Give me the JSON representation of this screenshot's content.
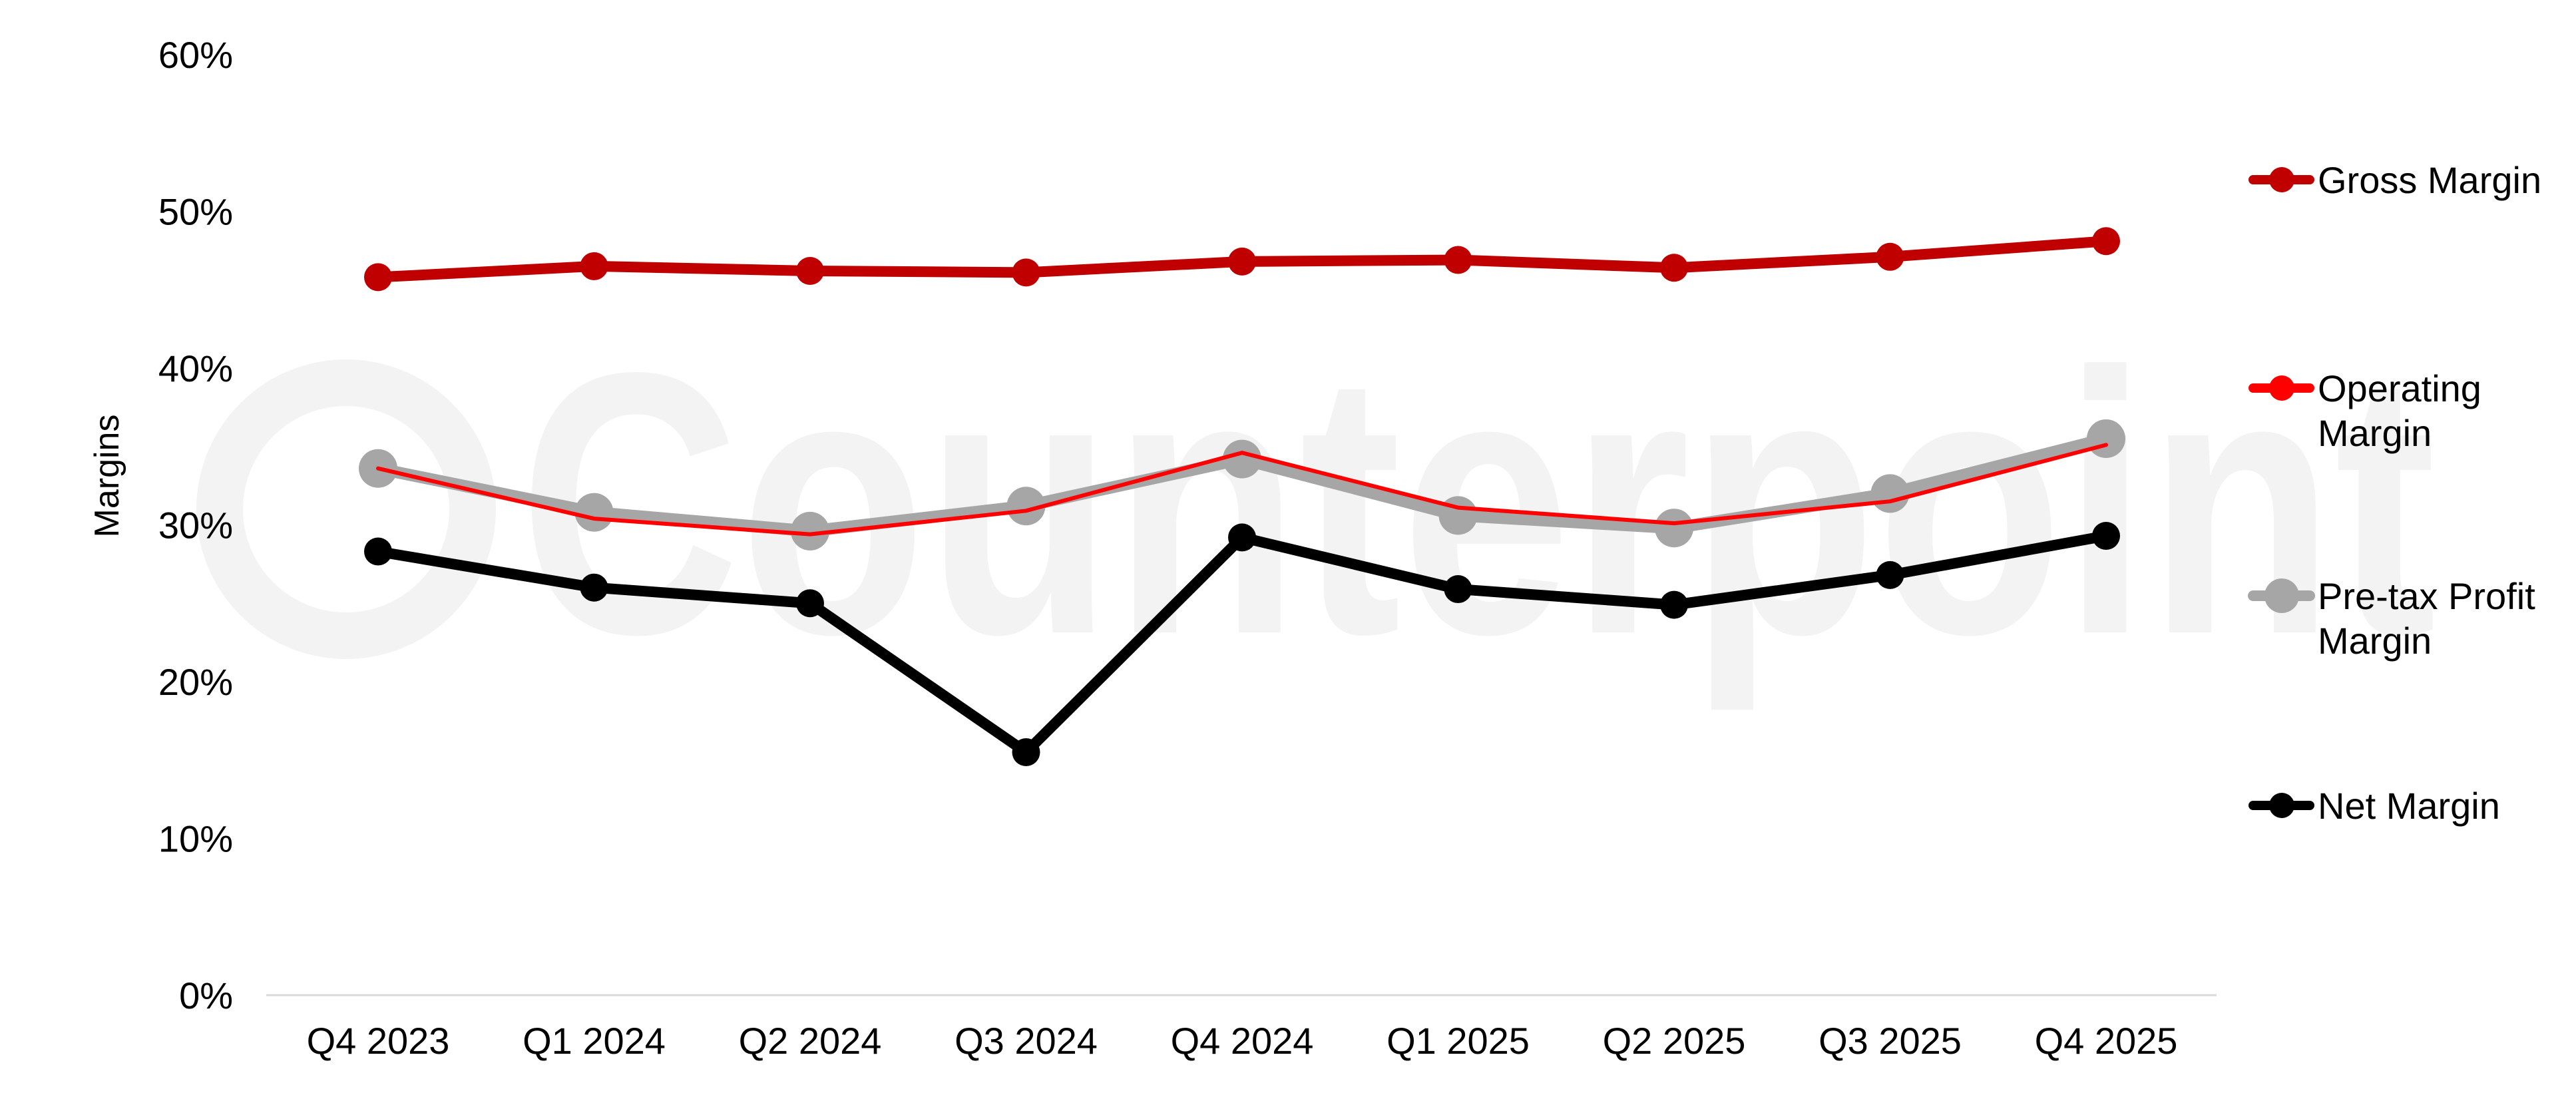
{
  "chart_data": {
    "type": "line",
    "title": "",
    "xlabel": "",
    "ylabel": "Margins",
    "ylim": [
      0,
      60
    ],
    "yticks": [
      "0%",
      "10%",
      "20%",
      "30%",
      "40%",
      "50%",
      "60%"
    ],
    "y_unit": "%",
    "grid": false,
    "legend_position": "right",
    "watermark": "Counterpoint",
    "categories": [
      "Q4 2023",
      "Q1 2024",
      "Q2 2024",
      "Q3 2024",
      "Q4 2024",
      "Q1 2025",
      "Q2 2025",
      "Q3 2025",
      "Q4 2025"
    ],
    "series": [
      {
        "name": "Gross Margin",
        "legend_lines": [
          "Gross Margin"
        ],
        "color": "#c00000",
        "values": [
          45.8,
          46.5,
          46.2,
          46.1,
          46.8,
          46.9,
          46.4,
          47.1,
          48.1
        ]
      },
      {
        "name": "Operating Margin",
        "legend_lines": [
          "Operating",
          "Margin"
        ],
        "color": "#ff0000",
        "values": [
          33.6,
          30.4,
          29.4,
          30.9,
          34.6,
          31.1,
          30.1,
          31.5,
          35.1
        ]
      },
      {
        "name": "Pre-tax Profit Margin",
        "legend_lines": [
          "Pre-tax Profit",
          "Margin"
        ],
        "color": "#a6a6a6",
        "values": [
          33.6,
          30.8,
          29.6,
          31.2,
          34.2,
          30.6,
          29.8,
          32.0,
          35.5
        ]
      },
      {
        "name": "Net Margin",
        "legend_lines": [
          "Net Margin"
        ],
        "color": "#000000",
        "values": [
          28.3,
          26.0,
          25.0,
          15.5,
          29.2,
          25.9,
          24.9,
          26.8,
          29.3
        ]
      }
    ]
  }
}
